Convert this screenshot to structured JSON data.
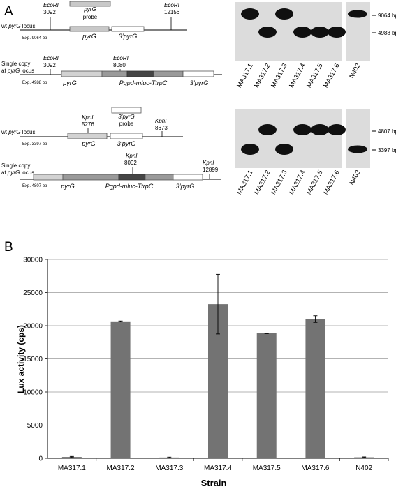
{
  "panel_a": {
    "label": "A",
    "diagrams": [
      {
        "locus": {
          "prefix": "wt ",
          "gene": "pyrG",
          "suffix": " locus"
        },
        "exp": "Exp. 9064 bp",
        "sites": [
          {
            "enzyme": "EcoRI",
            "position": "3092"
          },
          {
            "enzyme": "EcoRI",
            "position": "12156"
          }
        ],
        "probe": {
          "gene": "pyrG",
          "word": "probe"
        },
        "boxes": [
          "pyrG",
          "3’pyrG"
        ]
      },
      {
        "locus_line1": "Single copy",
        "locus_line2": {
          "prefix": "at ",
          "gene": "pyrG",
          "suffix": " locus"
        },
        "exp": "Exp. 4988 bp",
        "sites": [
          {
            "enzyme": "EcoRI",
            "position": "3092"
          },
          {
            "enzyme": "EcoRI",
            "position": "8080"
          }
        ],
        "boxes": [
          "pyrG",
          "Pgpd-mluc-TtrpC",
          "3’pyrG"
        ]
      },
      {
        "locus": {
          "prefix": "wt ",
          "gene": "pyrG",
          "suffix": " locus"
        },
        "exp": "Exp. 3397 bp",
        "sites": [
          {
            "enzyme": "KpnI",
            "position": "5276"
          },
          {
            "enzyme": "KpnI",
            "position": "8673"
          }
        ],
        "probe": {
          "gene": "3’pyrG",
          "word": "probe"
        },
        "boxes": [
          "pyrG",
          "3’pyrG"
        ]
      },
      {
        "locus_line1": "Single copy",
        "locus_line2": {
          "prefix": "at ",
          "gene": "pyrG",
          "suffix": " locus"
        },
        "exp": "Exp. 4807 bp",
        "sites": [
          {
            "enzyme": "KpnI",
            "position": "8092"
          },
          {
            "enzyme": "KpnI",
            "position": "12899"
          }
        ],
        "boxes": [
          "pyrG",
          "Pgpd-mluc-TtrpC",
          "3’pyrG"
        ]
      }
    ],
    "blots": [
      {
        "lanes": [
          "MA317.1",
          "MA317.2",
          "MA317.3",
          "MA317.4",
          "MA317.5",
          "MA317.6",
          "N402"
        ],
        "size_markers": [
          "9064 bp",
          "4988 bp"
        ],
        "band_pattern": [
          "upper",
          "lower",
          "upper",
          "lower",
          "lower",
          "lower",
          "upper"
        ]
      },
      {
        "lanes": [
          "MA317.1",
          "MA317.2",
          "MA317.3",
          "MA317.4",
          "MA317.5",
          "MA317.6",
          "N402"
        ],
        "size_markers": [
          "4807 bp",
          "3397 bp"
        ],
        "band_pattern": [
          "lower",
          "upper",
          "lower",
          "upper",
          "upper",
          "upper",
          "lower"
        ]
      }
    ]
  },
  "panel_b": {
    "label": "B"
  },
  "chart_data": {
    "type": "bar",
    "title": "",
    "xlabel": "Strain",
    "ylabel": "Lux activity (cps)",
    "categories": [
      "MA317.1",
      "MA317.2",
      "MA317.3",
      "MA317.4",
      "MA317.5",
      "MA317.6",
      "N402"
    ],
    "values": [
      200,
      20650,
      120,
      23250,
      18850,
      21000,
      150
    ],
    "errors": [
      80,
      60,
      60,
      4500,
      50,
      500,
      60
    ],
    "ylim": [
      0,
      30000
    ],
    "yticks": [
      "0",
      "5000",
      "10000",
      "15000",
      "20000",
      "25000",
      "30000"
    ],
    "grid": true,
    "bar_color": "#737373"
  }
}
